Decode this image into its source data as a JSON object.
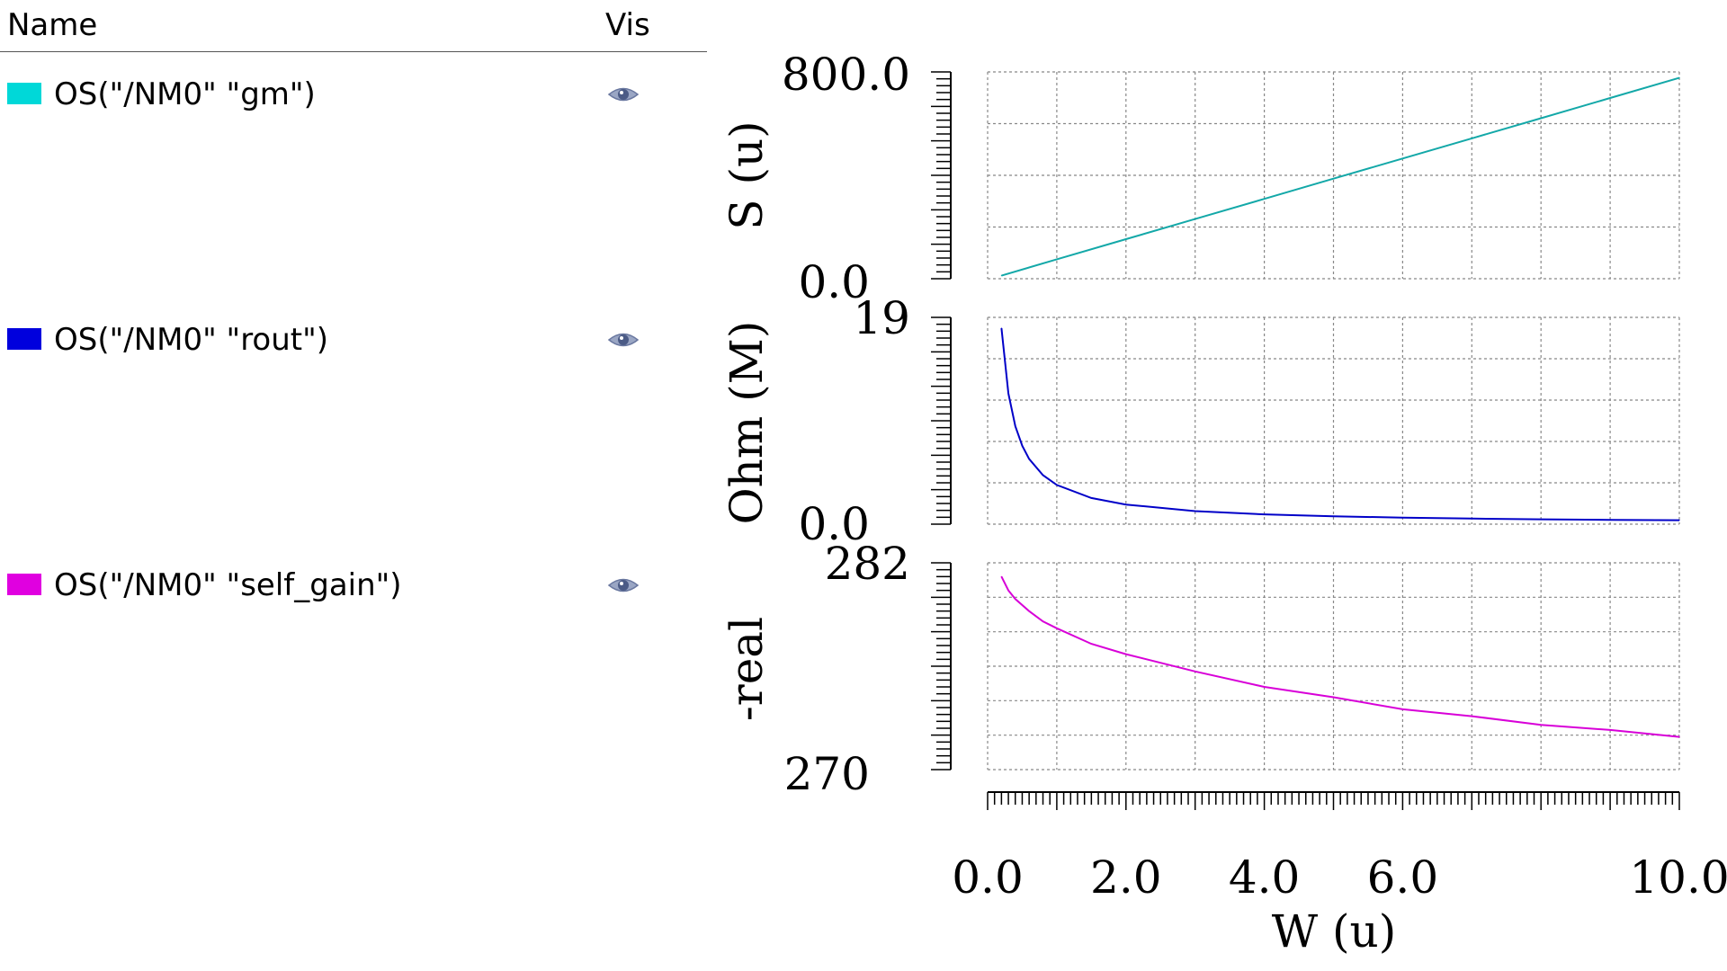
{
  "legend": {
    "name_header": "Name",
    "vis_header": "Vis",
    "items": [
      {
        "label": "OS(\"/NM0\" \"gm\")",
        "color": "#00d8d8",
        "icon": "eye-icon"
      },
      {
        "label": "OS(\"/NM0\" \"rout\")",
        "color": "#0000dd",
        "icon": "eye-icon"
      },
      {
        "label": "OS(\"/NM0\" \"self_gain\")",
        "color": "#e000e0",
        "icon": "eye-icon"
      }
    ]
  },
  "chart_data": {
    "type": "line",
    "xlabel": "W (u)",
    "xlim": [
      0,
      10
    ],
    "x_ticks": [
      {
        "value": 0,
        "label": "0.0"
      },
      {
        "value": 2,
        "label": "2.0"
      },
      {
        "value": 4,
        "label": "4.0"
      },
      {
        "value": 6,
        "label": "6.0"
      },
      {
        "value": 10,
        "label": "10.0"
      }
    ],
    "grid": true,
    "panels": [
      {
        "name": "gm",
        "ylabel": "S (u)",
        "ylim": [
          0,
          800
        ],
        "y_top_label": "800.0",
        "y_bottom_label": "0.0",
        "color": "#13a8a8",
        "series": {
          "name": "OS(\"/NM0\" \"gm\")",
          "x": [
            0.2,
            1,
            2,
            3,
            4,
            5,
            6,
            7,
            8,
            9,
            10
          ],
          "y": [
            12,
            75,
            153,
            231,
            309,
            387,
            465,
            543,
            621,
            699,
            777
          ]
        }
      },
      {
        "name": "rout",
        "ylabel": "Ohm (M)",
        "ylim": [
          0,
          19
        ],
        "y_top_label": "19",
        "y_bottom_label": "0.0",
        "color": "#0000c8",
        "series": {
          "name": "OS(\"/NM0\" \"rout\")",
          "x": [
            0.2,
            0.3,
            0.4,
            0.5,
            0.6,
            0.8,
            1.0,
            1.5,
            2,
            3,
            4,
            5,
            6,
            7,
            8,
            9,
            10
          ],
          "y": [
            18.0,
            12.0,
            9.0,
            7.2,
            6.0,
            4.5,
            3.6,
            2.4,
            1.8,
            1.2,
            0.9,
            0.72,
            0.6,
            0.51,
            0.45,
            0.4,
            0.36
          ]
        }
      },
      {
        "name": "self_gain",
        "ylabel": "-real",
        "ylim": [
          270,
          282
        ],
        "y_top_label": "282",
        "y_bottom_label": "270",
        "color": "#d800d8",
        "series": {
          "name": "OS(\"/NM0\" \"self_gain\")",
          "x": [
            0.2,
            0.3,
            0.4,
            0.6,
            0.8,
            1,
            1.5,
            2,
            3,
            4,
            5,
            6,
            7,
            8,
            9,
            10
          ],
          "y": [
            281.2,
            280.4,
            279.9,
            279.2,
            278.6,
            278.2,
            277.3,
            276.7,
            275.7,
            274.8,
            274.2,
            273.5,
            273.1,
            272.6,
            272.3,
            271.9
          ]
        }
      }
    ]
  }
}
